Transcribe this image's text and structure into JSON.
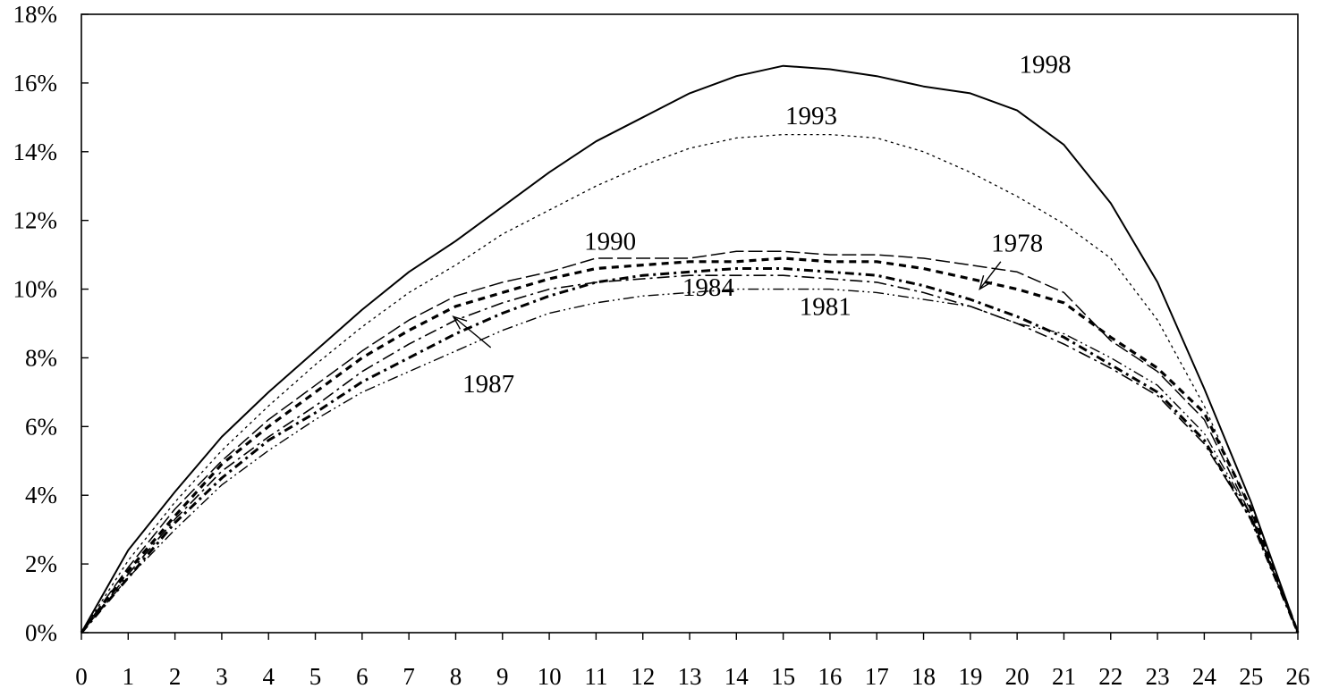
{
  "chart_data": {
    "type": "line",
    "title": "",
    "xlabel": "",
    "ylabel": "",
    "xlim": [
      0,
      26
    ],
    "ylim": [
      0,
      18
    ],
    "x": [
      0,
      1,
      2,
      3,
      4,
      5,
      6,
      7,
      8,
      9,
      10,
      11,
      12,
      13,
      14,
      15,
      16,
      17,
      18,
      19,
      20,
      21,
      22,
      23,
      24,
      25,
      26
    ],
    "x_ticks": [
      "0",
      "1",
      "2",
      "3",
      "4",
      "5",
      "6",
      "7",
      "8",
      "9",
      "10",
      "11",
      "12",
      "13",
      "14",
      "15",
      "16",
      "17",
      "18",
      "19",
      "20",
      "21",
      "22",
      "23",
      "24",
      "25",
      "26"
    ],
    "y_ticks": [
      {
        "value": 0,
        "label": "0%"
      },
      {
        "value": 2,
        "label": "2%"
      },
      {
        "value": 4,
        "label": "4%"
      },
      {
        "value": 6,
        "label": "6%"
      },
      {
        "value": 8,
        "label": "8%"
      },
      {
        "value": 10,
        "label": "10%"
      },
      {
        "value": 12,
        "label": "12%"
      },
      {
        "value": 14,
        "label": "14%"
      },
      {
        "value": 16,
        "label": "16%"
      },
      {
        "value": 18,
        "label": "18%"
      }
    ],
    "grid": false,
    "series": [
      {
        "name": "1998",
        "style": "solid",
        "values": [
          0,
          2.4,
          4.1,
          5.7,
          7.0,
          8.2,
          9.4,
          10.5,
          11.4,
          12.4,
          13.4,
          14.3,
          15.0,
          15.7,
          16.2,
          16.5,
          16.4,
          16.2,
          15.9,
          15.7,
          15.2,
          14.2,
          12.5,
          10.2,
          7.1,
          3.8,
          0
        ]
      },
      {
        "name": "1993",
        "style": "fine-dotted",
        "values": [
          0,
          2.1,
          3.8,
          5.3,
          6.6,
          7.8,
          8.9,
          9.9,
          10.7,
          11.6,
          12.3,
          13.0,
          13.6,
          14.1,
          14.4,
          14.5,
          14.5,
          14.4,
          14.0,
          13.4,
          12.7,
          11.9,
          10.9,
          9.1,
          6.6,
          3.5,
          0
        ]
      },
      {
        "name": "1990",
        "style": "long-dash",
        "values": [
          0,
          1.9,
          3.6,
          5.0,
          6.2,
          7.2,
          8.2,
          9.1,
          9.8,
          10.2,
          10.5,
          10.9,
          10.9,
          10.9,
          11.1,
          11.1,
          11.0,
          11.0,
          10.9,
          10.7,
          10.5,
          9.9,
          8.5,
          7.6,
          6.2,
          3.4,
          0
        ]
      },
      {
        "name": "1978",
        "style": "heavy-dash",
        "values": [
          0,
          1.8,
          3.4,
          4.9,
          6.0,
          7.0,
          8.0,
          8.8,
          9.5,
          9.9,
          10.3,
          10.6,
          10.7,
          10.8,
          10.8,
          10.9,
          10.8,
          10.8,
          10.6,
          10.3,
          10.0,
          9.6,
          8.6,
          7.7,
          6.4,
          3.6,
          0
        ]
      },
      {
        "name": "1984",
        "style": "dash-dot",
        "values": [
          0,
          1.7,
          3.3,
          4.7,
          5.7,
          6.6,
          7.6,
          8.4,
          9.1,
          9.6,
          10.0,
          10.2,
          10.3,
          10.4,
          10.4,
          10.4,
          10.3,
          10.2,
          9.9,
          9.5,
          9.0,
          8.4,
          7.7,
          6.9,
          5.5,
          3.3,
          0
        ]
      },
      {
        "name": "1987",
        "style": "heavy-dot-dash",
        "values": [
          0,
          1.6,
          3.2,
          4.5,
          5.6,
          6.4,
          7.3,
          8.0,
          8.7,
          9.3,
          9.8,
          10.2,
          10.4,
          10.5,
          10.6,
          10.6,
          10.5,
          10.4,
          10.1,
          9.7,
          9.2,
          8.6,
          7.8,
          7.0,
          5.6,
          3.3,
          0
        ]
      },
      {
        "name": "1981",
        "style": "dash-dot-dot",
        "values": [
          0,
          1.6,
          3.0,
          4.3,
          5.3,
          6.2,
          7.0,
          7.6,
          8.2,
          8.8,
          9.3,
          9.6,
          9.8,
          9.9,
          10.0,
          10.0,
          10.0,
          9.9,
          9.7,
          9.5,
          9.0,
          8.7,
          8.0,
          7.2,
          5.8,
          3.4,
          0
        ]
      }
    ]
  }
}
